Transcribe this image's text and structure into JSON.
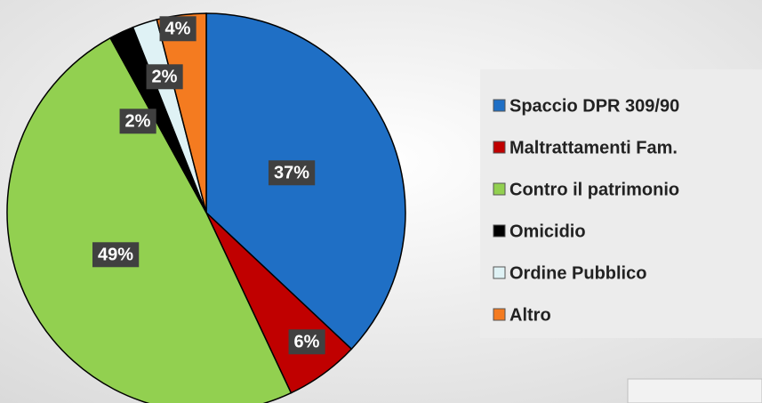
{
  "chart_data": {
    "type": "pie",
    "categories": [
      "Spaccio DPR 309/90",
      "Maltrattamenti Fam.",
      "Contro il patrimonio",
      "Omicidio",
      "Ordine Pubblico",
      "Altro"
    ],
    "values": [
      37,
      6,
      49,
      2,
      2,
      4
    ],
    "value_labels": [
      "37%",
      "6%",
      "49%",
      "2%",
      "2%",
      "4%"
    ],
    "colors": [
      "#1f6fc5",
      "#c00000",
      "#92d050",
      "#000000",
      "#dff2f5",
      "#f47b20"
    ]
  }
}
